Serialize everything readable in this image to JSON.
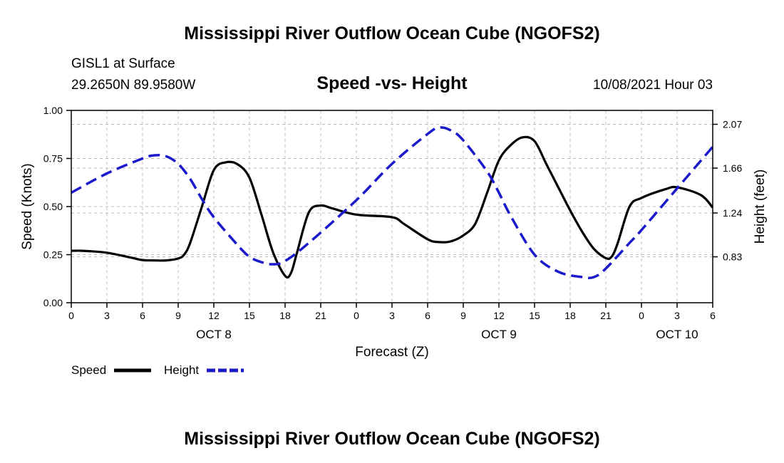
{
  "chart_data": {
    "type": "line",
    "title": "Mississippi River Outflow Ocean Cube (NGOFS2)",
    "footer_title": "Mississippi River Outflow Ocean Cube (NGOFS2)",
    "subtitle": "Speed -vs- Height",
    "station": "GISL1 at Surface",
    "coordinates": "29.2650N  89.9580W",
    "datetime": "10/08/2021 Hour 03",
    "xlabel": "Forecast (Z)",
    "ylabel": "Speed (Knots)",
    "y2label": "Height (feet)",
    "xlim": [
      0,
      54
    ],
    "ylim": [
      0,
      1.0
    ],
    "y2lim": [
      0.4,
      2.2
    ],
    "grid": true,
    "legend_position": "bottom-left",
    "x_tick_values": [
      0,
      3,
      6,
      9,
      12,
      15,
      18,
      21,
      24,
      27,
      30,
      33,
      36,
      39,
      42,
      45,
      48,
      51,
      54
    ],
    "x_tick_labels": [
      "0",
      "3",
      "6",
      "9",
      "12",
      "15",
      "18",
      "21",
      "0",
      "3",
      "6",
      "9",
      "12",
      "15",
      "18",
      "21",
      "0",
      "3",
      "6"
    ],
    "date_labels": [
      {
        "x": 12,
        "label": "OCT 8"
      },
      {
        "x": 36,
        "label": "OCT 9"
      },
      {
        "x": 51,
        "label": "OCT 10"
      }
    ],
    "y_tick_values": [
      0,
      0.25,
      0.5,
      0.75,
      1.0
    ],
    "y_tick_labels": [
      "0.00",
      "0.25",
      "0.50",
      "0.75",
      "1.00"
    ],
    "y2_tick_values": [
      0.83,
      1.24,
      1.66,
      2.07
    ],
    "y2_tick_labels": [
      "0.83",
      "1.24",
      "1.66",
      "2.07"
    ],
    "series": [
      {
        "name": "Speed",
        "axis": "left",
        "color": "#000000",
        "dash": "solid",
        "x": [
          0,
          1,
          3,
          5,
          6,
          7,
          8,
          9,
          9.5,
          10,
          11,
          12,
          13,
          14,
          15,
          16,
          17,
          18,
          18.5,
          19,
          20,
          21,
          22,
          24,
          27,
          28,
          30,
          31,
          32,
          33,
          34,
          35,
          36,
          37,
          38,
          39,
          40,
          41,
          42,
          43,
          44,
          45,
          45.5,
          46,
          47,
          48,
          50,
          51,
          53,
          54
        ],
        "values": [
          0.27,
          0.27,
          0.26,
          0.235,
          0.222,
          0.22,
          0.22,
          0.23,
          0.25,
          0.31,
          0.5,
          0.69,
          0.73,
          0.72,
          0.65,
          0.46,
          0.26,
          0.14,
          0.155,
          0.26,
          0.47,
          0.505,
          0.49,
          0.458,
          0.445,
          0.41,
          0.33,
          0.315,
          0.32,
          0.35,
          0.41,
          0.57,
          0.74,
          0.82,
          0.86,
          0.84,
          0.72,
          0.6,
          0.48,
          0.37,
          0.28,
          0.232,
          0.24,
          0.31,
          0.5,
          0.545,
          0.59,
          0.6,
          0.56,
          0.495
        ]
      },
      {
        "name": "Height",
        "axis": "right",
        "color": "#1a1acc",
        "dash": "dashed",
        "x": [
          0,
          3,
          6,
          7,
          8,
          9,
          10,
          11,
          12,
          14,
          15,
          16,
          17,
          18,
          20,
          24,
          27,
          30,
          31,
          32,
          33,
          35,
          36,
          37,
          39,
          41,
          43,
          44,
          45,
          47,
          48,
          51,
          54
        ],
        "values": [
          1.43,
          1.61,
          1.75,
          1.78,
          1.77,
          1.7,
          1.56,
          1.37,
          1.2,
          0.94,
          0.83,
          0.78,
          0.76,
          0.79,
          0.96,
          1.36,
          1.7,
          1.98,
          2.04,
          2.01,
          1.92,
          1.63,
          1.43,
          1.21,
          0.85,
          0.69,
          0.64,
          0.64,
          0.72,
          0.96,
          1.08,
          1.47,
          1.86
        ]
      }
    ]
  }
}
